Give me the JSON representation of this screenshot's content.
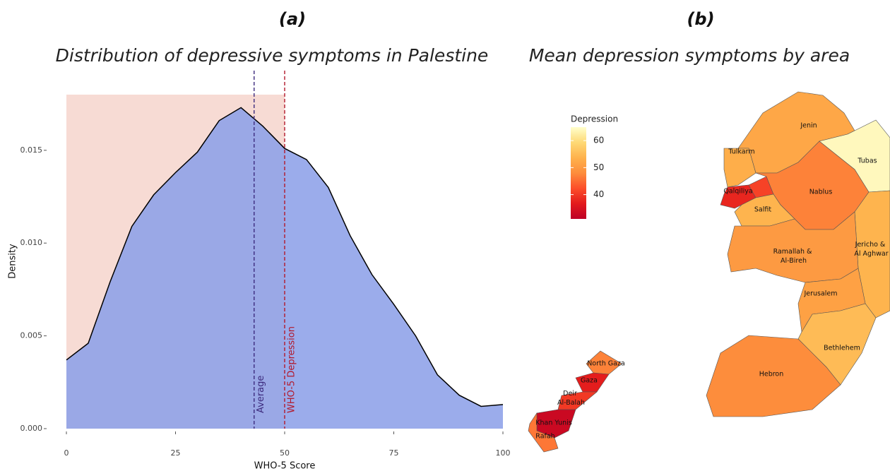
{
  "chart_data": [
    {
      "type": "area",
      "panel": "(a)",
      "title": "Distribution of depressive symptoms in Palestine",
      "x": [
        0,
        5,
        10,
        15,
        20,
        25,
        30,
        35,
        40,
        45,
        50,
        55,
        60,
        65,
        70,
        75,
        80,
        85,
        90,
        95,
        100
      ],
      "values": [
        0.0037,
        0.0046,
        0.0079,
        0.0109,
        0.0126,
        0.0138,
        0.0149,
        0.0166,
        0.0173,
        0.0163,
        0.0151,
        0.0145,
        0.013,
        0.0104,
        0.0083,
        0.0067,
        0.005,
        0.0029,
        0.0018,
        0.0012,
        0.0013
      ],
      "color": "#8da0e8",
      "xlim": [
        0,
        100
      ],
      "ylim": [
        0,
        0.018
      ],
      "xticks": [
        0,
        25,
        50,
        75,
        100
      ],
      "yticks": [
        {
          "value": 0,
          "label": "0.000"
        },
        {
          "value": 0.005,
          "label": "0.005"
        },
        {
          "value": 0.01,
          "label": "0.010"
        },
        {
          "value": 0.015,
          "label": "0.015"
        }
      ],
      "xlabel": "WHO-5 Score",
      "ylabel": "Density",
      "vlines": [
        {
          "label": "Average",
          "x": 43,
          "color": "#3d2b7e"
        },
        {
          "label": "WHO-5 Depression",
          "x": 50,
          "color": "#b2182b"
        }
      ],
      "shade_color": "#f7dbd4"
    },
    {
      "type": "choropleth",
      "panel": "(b)",
      "title": "Mean depression symptoms by area",
      "legend_title": "Depression",
      "regions": [
        {
          "name": "Jenin",
          "value": 52
        },
        {
          "name": "Tubas",
          "value": 64
        },
        {
          "name": "Tulkarm",
          "value": 53
        },
        {
          "name": "Qalqiliya",
          "value": 38
        },
        {
          "name": null,
          "value": 41
        },
        {
          "name": "Nablus",
          "value": 47
        },
        {
          "name": "Salfit",
          "value": 54
        },
        {
          "name": "Jericho & Al Aghwar",
          "value": 54
        },
        {
          "name": "Ramallah & Al-Bireh",
          "value": 50
        },
        {
          "name": "Jerusalem",
          "value": 51
        },
        {
          "name": "Bethlehem",
          "value": 55
        },
        {
          "name": "Hebron",
          "value": 48
        },
        {
          "name": "North Gaza",
          "value": 47
        },
        {
          "name": "Gaza",
          "value": 37
        },
        {
          "name": "Deir Al-Balah",
          "value": 40
        },
        {
          "name": "Khan Yunis",
          "value": 33
        },
        {
          "name": "Rafah",
          "value": 46
        }
      ],
      "colorbar_lim": [
        31,
        65
      ],
      "colorbar_ticks": [
        40,
        50,
        60
      ],
      "colormap": [
        "#bd0026",
        "#e31a1c",
        "#fc4e2a",
        "#fd8d3c",
        "#feb24c",
        "#fed976",
        "#ffffcc"
      ]
    }
  ]
}
